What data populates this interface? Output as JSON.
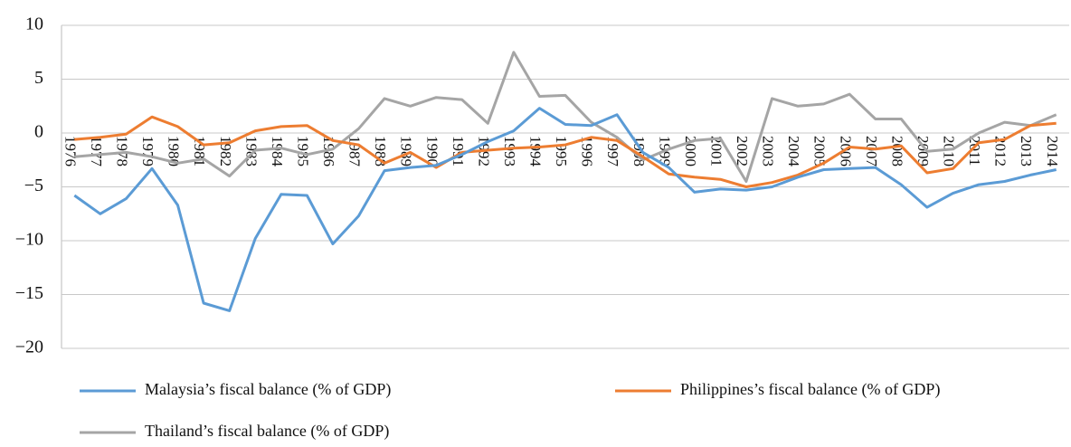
{
  "chart_data": {
    "type": "line",
    "categories": [
      "1976",
      "1977",
      "1978",
      "1979",
      "1980",
      "1981",
      "1982",
      "1983",
      "1984",
      "1985",
      "1986",
      "1987",
      "1988",
      "1989",
      "1990",
      "1991",
      "1992",
      "1993",
      "1994",
      "1995",
      "1996",
      "1997",
      "1998",
      "1999",
      "2000",
      "2001",
      "2002",
      "2003",
      "2004",
      "2005",
      "2006",
      "2007",
      "2008",
      "2009",
      "2010",
      "2011",
      "2012",
      "2013",
      "2014"
    ],
    "series": [
      {
        "name": "Malaysia’s fiscal balance (% of GDP)",
        "color": "#5b9bd5",
        "values": [
          -5.8,
          -7.5,
          -6.1,
          -3.3,
          -6.7,
          -15.8,
          -16.5,
          -9.8,
          -5.7,
          -5.8,
          -10.3,
          -7.7,
          -3.5,
          -3.2,
          -3.0,
          -2.0,
          -0.8,
          0.2,
          2.3,
          0.8,
          0.7,
          1.7,
          -1.8,
          -3.2,
          -5.5,
          -5.2,
          -5.3,
          -5.0,
          -4.1,
          -3.4,
          -3.3,
          -3.2,
          -4.8,
          -6.9,
          -5.6,
          -4.8,
          -4.5,
          -3.9,
          -3.4
        ]
      },
      {
        "name": "Philippines’s fiscal balance (% of GDP)",
        "color": "#ed7d31",
        "values": [
          -0.6,
          -0.4,
          -0.1,
          1.5,
          0.6,
          -1.1,
          -0.9,
          0.2,
          0.6,
          0.7,
          -0.7,
          -1.1,
          -2.8,
          -1.8,
          -3.2,
          -1.8,
          -1.6,
          -1.4,
          -1.3,
          -1.1,
          -0.4,
          -0.7,
          -2.2,
          -3.8,
          -4.1,
          -4.3,
          -5.0,
          -4.6,
          -3.9,
          -2.8,
          -1.3,
          -1.5,
          -1.2,
          -3.7,
          -3.3,
          -0.9,
          -0.6,
          0.7,
          0.9
        ]
      },
      {
        "name": "Thailand’s fiscal balance (% of GDP)",
        "color": "#a5a5a5",
        "values": [
          -2.2,
          -2.0,
          -1.8,
          -2.2,
          -2.8,
          -2.4,
          -4.0,
          -1.6,
          -1.4,
          -2.0,
          -1.5,
          0.4,
          3.2,
          2.5,
          3.3,
          3.1,
          0.9,
          7.5,
          3.4,
          3.5,
          1.0,
          -0.4,
          -2.5,
          -1.5,
          -0.7,
          -0.5,
          -4.5,
          3.2,
          2.5,
          2.7,
          3.6,
          1.3,
          1.3,
          -1.7,
          -1.5,
          0.0,
          1.0,
          0.7,
          1.7
        ]
      }
    ],
    "ylim": [
      -20,
      10
    ],
    "yticks": [
      {
        "value": -20,
        "label": "−20"
      },
      {
        "value": -15,
        "label": "−15"
      },
      {
        "value": -10,
        "label": "−10"
      },
      {
        "value": -5,
        "label": "−5"
      },
      0,
      5,
      10
    ],
    "grid": true
  }
}
